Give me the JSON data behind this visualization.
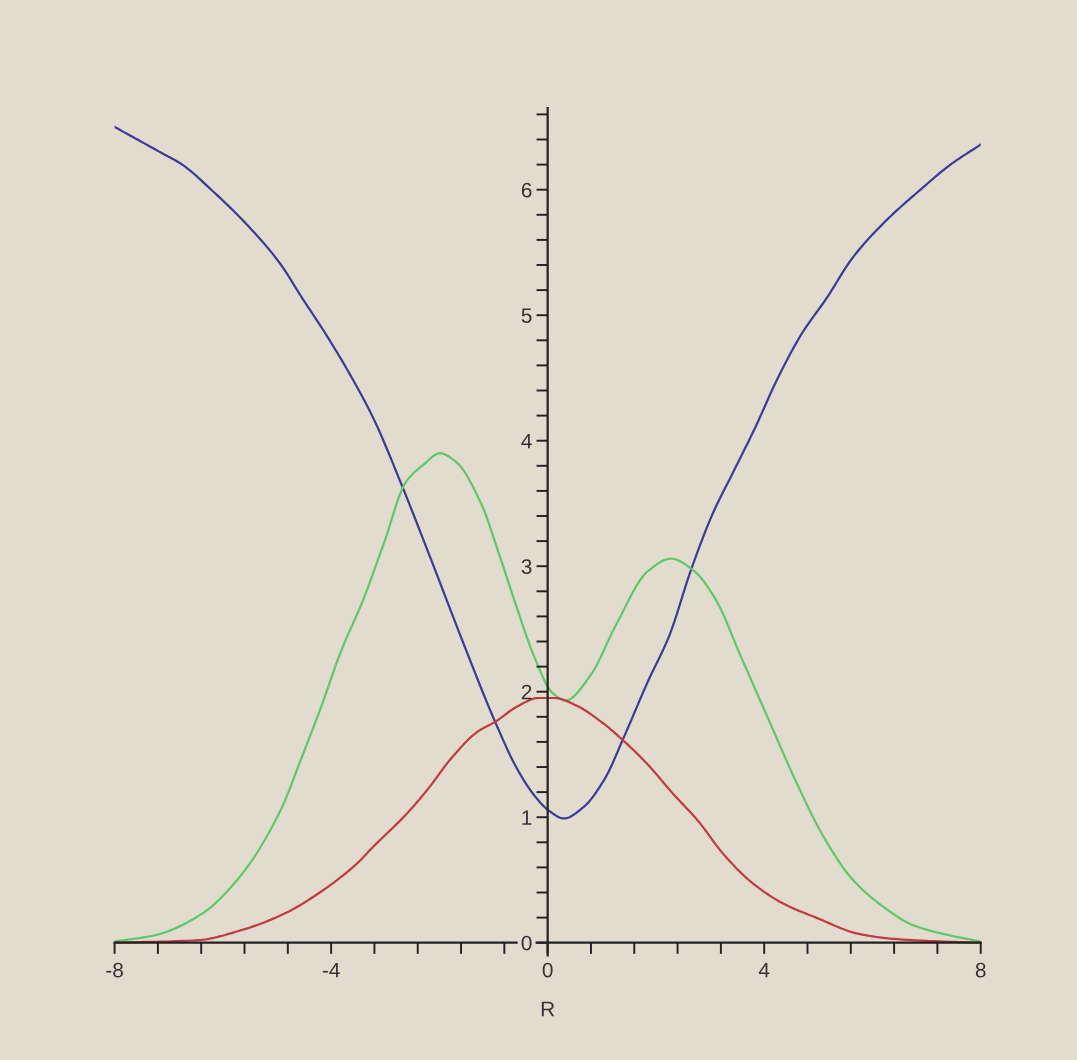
{
  "chart_data": {
    "type": "line",
    "xlabel": "R",
    "xlim": [
      -8,
      8
    ],
    "ylim": [
      -0.1,
      6.65
    ],
    "xticks": [
      -8,
      {
        "value": -7.2,
        "label": null
      },
      {
        "value": -6.4,
        "label": null
      },
      {
        "value": -5.6,
        "label": null
      },
      {
        "value": -4.8,
        "label": null
      },
      -4,
      {
        "value": -3.2,
        "label": null
      },
      {
        "value": -2.4,
        "label": null
      },
      {
        "value": -1.6,
        "label": null
      },
      {
        "value": -0.8,
        "label": null
      },
      0,
      {
        "value": 0.8,
        "label": null
      },
      {
        "value": 1.6,
        "label": null
      },
      {
        "value": 2.4,
        "label": null
      },
      {
        "value": 3.2,
        "label": null
      },
      4,
      {
        "value": 4.8,
        "label": null
      },
      {
        "value": 5.6,
        "label": null
      },
      {
        "value": 6.4,
        "label": null
      },
      {
        "value": 7.2,
        "label": null
      },
      8
    ],
    "yticks": [
      0,
      {
        "value": 0.2,
        "label": null
      },
      {
        "value": 0.4,
        "label": null
      },
      {
        "value": 0.6,
        "label": null
      },
      {
        "value": 0.8,
        "label": null
      },
      1,
      {
        "value": 1.2,
        "label": null
      },
      {
        "value": 1.4,
        "label": null
      },
      {
        "value": 1.6,
        "label": null
      },
      {
        "value": 1.8,
        "label": null
      },
      2,
      {
        "value": 2.2,
        "label": null
      },
      {
        "value": 2.4,
        "label": null
      },
      {
        "value": 2.6,
        "label": null
      },
      {
        "value": 2.8,
        "label": null
      },
      3,
      {
        "value": 3.2,
        "label": null
      },
      {
        "value": 3.4,
        "label": null
      },
      {
        "value": 3.6,
        "label": null
      },
      {
        "value": 3.8,
        "label": null
      },
      4,
      {
        "value": 4.2,
        "label": null
      },
      {
        "value": 4.4,
        "label": null
      },
      {
        "value": 4.6,
        "label": null
      },
      {
        "value": 4.8,
        "label": null
      },
      5,
      {
        "value": 5.2,
        "label": null
      },
      {
        "value": 5.4,
        "label": null
      },
      {
        "value": 5.6,
        "label": null
      },
      {
        "value": 5.8,
        "label": null
      },
      6,
      {
        "value": 6.2,
        "label": null
      },
      {
        "value": 6.4,
        "label": null
      },
      {
        "value": 6.6,
        "label": null
      }
    ],
    "series": [
      {
        "color": "#3d3a99",
        "x": [
          -8,
          -7.12,
          -6.75,
          -6.19,
          -5.53,
          -4.94,
          -4.54,
          -4.07,
          -3.55,
          -3.21,
          -2.68,
          -2.16,
          -1.56,
          -0.97,
          -0.57,
          -0.24,
          0.03,
          0.3,
          0.66,
          1.06,
          1.39,
          1.85,
          2.25,
          2.64,
          3.04,
          3.44,
          3.84,
          4.23,
          4.69,
          5.16,
          5.62,
          6.22,
          6.94,
          7.41,
          8
        ],
        "values": [
          6.5,
          6.29,
          6.2,
          5.99,
          5.71,
          5.41,
          5.14,
          4.83,
          4.45,
          4.17,
          3.63,
          3.06,
          2.39,
          1.76,
          1.39,
          1.17,
          1.05,
          0.99,
          1.08,
          1.31,
          1.62,
          2.08,
          2.45,
          2.96,
          3.41,
          3.76,
          4.11,
          4.48,
          4.85,
          5.14,
          5.45,
          5.74,
          6.02,
          6.19,
          6.36
        ]
      },
      {
        "color": "#5cc96a",
        "x": [
          -8,
          -7.25,
          -6.39,
          -5.66,
          -4.94,
          -4.54,
          -4.21,
          -3.81,
          -3.41,
          -3.02,
          -2.62,
          -2.29,
          -1.99,
          -1.69,
          -1.23,
          -0.9,
          -0.57,
          -0.24,
          0.09,
          0.33,
          0.79,
          1.26,
          1.85,
          2.28,
          2.71,
          3.11,
          3.57,
          4.1,
          4.56,
          5.09,
          5.62,
          6.22,
          6.75,
          7.41,
          8
        ],
        "values": [
          0.01,
          0.06,
          0.23,
          0.54,
          1.05,
          1.48,
          1.85,
          2.33,
          2.73,
          3.19,
          3.67,
          3.81,
          3.9,
          3.83,
          3.5,
          3.1,
          2.67,
          2.27,
          1.99,
          1.93,
          2.13,
          2.53,
          2.96,
          3.06,
          2.96,
          2.73,
          2.28,
          1.76,
          1.31,
          0.85,
          0.51,
          0.28,
          0.14,
          0.06,
          0.01
        ]
      },
      {
        "color": "#c23a44",
        "x": [
          -8,
          -6.46,
          -5.66,
          -4.87,
          -4.21,
          -3.55,
          -3.21,
          -2.62,
          -2.22,
          -1.76,
          -1.3,
          -0.97,
          -0.57,
          -0.17,
          0.13,
          0.53,
          0.99,
          1.45,
          1.85,
          2.31,
          2.78,
          3.24,
          3.77,
          4.36,
          4.96,
          5.75,
          6.41,
          7.27,
          8
        ],
        "values": [
          0.0,
          0.02,
          0.1,
          0.23,
          0.4,
          0.62,
          0.77,
          1.02,
          1.22,
          1.48,
          1.68,
          1.76,
          1.88,
          1.95,
          1.95,
          1.89,
          1.76,
          1.59,
          1.42,
          1.19,
          0.97,
          0.71,
          0.48,
          0.31,
          0.2,
          0.07,
          0.03,
          0.01,
          0.0
        ]
      }
    ]
  }
}
